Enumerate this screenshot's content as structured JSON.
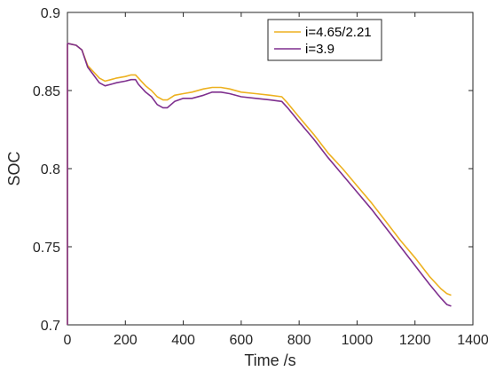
{
  "chart_data": {
    "type": "line",
    "xlabel": "Time /s",
    "ylabel": "SOC",
    "xlim": [
      0,
      1400
    ],
    "ylim": [
      0.7,
      0.9
    ],
    "xticks": [
      0,
      200,
      400,
      600,
      800,
      1000,
      1200,
      1400
    ],
    "xtick_labels": [
      "0",
      "200",
      "400",
      "600",
      "800",
      "1000",
      "1200",
      "1400"
    ],
    "yticks": [
      0.7,
      0.75,
      0.8,
      0.85,
      0.9
    ],
    "ytick_labels": [
      "0.7",
      "0.75",
      "0.8",
      "0.85",
      "0.9"
    ],
    "grid": false,
    "legend_position": "top-right",
    "series": [
      {
        "name": "i=4.65/2.21",
        "color": "#EDB120",
        "x": [
          0,
          0,
          5,
          30,
          50,
          70,
          90,
          110,
          130,
          150,
          170,
          200,
          220,
          235,
          245,
          255,
          270,
          290,
          310,
          330,
          345,
          370,
          400,
          430,
          470,
          500,
          530,
          560,
          600,
          650,
          700,
          740,
          760,
          800,
          850,
          900,
          950,
          1000,
          1050,
          1100,
          1150,
          1200,
          1250,
          1290,
          1310,
          1325
        ],
        "values": [
          0.7,
          0.88,
          0.88,
          0.879,
          0.876,
          0.866,
          0.862,
          0.858,
          0.856,
          0.857,
          0.858,
          0.859,
          0.86,
          0.86,
          0.858,
          0.856,
          0.853,
          0.85,
          0.846,
          0.844,
          0.844,
          0.847,
          0.848,
          0.849,
          0.851,
          0.852,
          0.852,
          0.851,
          0.849,
          0.848,
          0.847,
          0.846,
          0.842,
          0.833,
          0.822,
          0.81,
          0.8,
          0.789,
          0.778,
          0.766,
          0.754,
          0.743,
          0.731,
          0.723,
          0.72,
          0.719
        ]
      },
      {
        "name": "i=3.9",
        "color": "#7E2F8E",
        "x": [
          0,
          0,
          5,
          30,
          50,
          70,
          90,
          110,
          130,
          150,
          170,
          200,
          220,
          235,
          245,
          255,
          270,
          290,
          310,
          330,
          345,
          370,
          400,
          430,
          470,
          500,
          530,
          560,
          600,
          650,
          700,
          740,
          760,
          800,
          850,
          900,
          950,
          1000,
          1050,
          1100,
          1150,
          1200,
          1250,
          1290,
          1310,
          1325
        ],
        "values": [
          0.7,
          0.88,
          0.88,
          0.879,
          0.876,
          0.865,
          0.86,
          0.855,
          0.853,
          0.854,
          0.855,
          0.856,
          0.857,
          0.857,
          0.854,
          0.852,
          0.849,
          0.846,
          0.841,
          0.839,
          0.839,
          0.843,
          0.845,
          0.845,
          0.847,
          0.849,
          0.849,
          0.848,
          0.846,
          0.845,
          0.844,
          0.843,
          0.839,
          0.83,
          0.819,
          0.807,
          0.796,
          0.785,
          0.774,
          0.762,
          0.75,
          0.738,
          0.726,
          0.717,
          0.713,
          0.712
        ]
      }
    ]
  }
}
